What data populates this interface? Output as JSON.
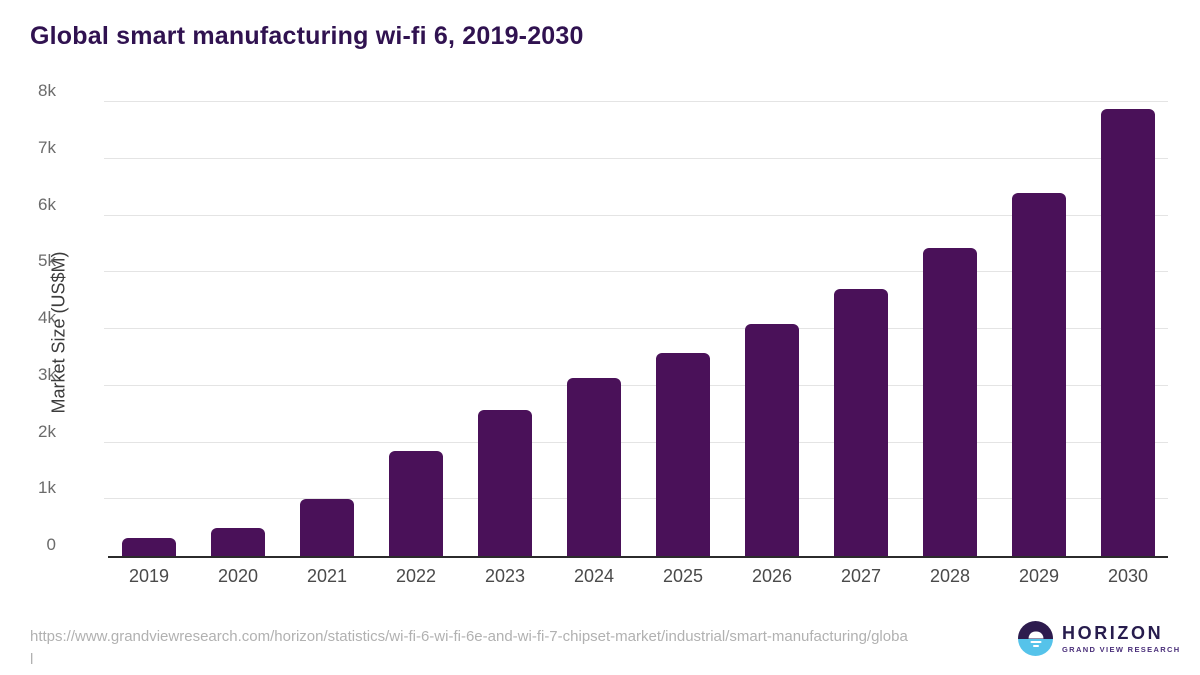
{
  "chart_data": {
    "type": "bar",
    "title": "Global smart manufacturing wi-fi 6, 2019-2030",
    "xlabel": "",
    "ylabel": "Market Size (US$M)",
    "categories": [
      "2019",
      "2020",
      "2021",
      "2022",
      "2023",
      "2024",
      "2025",
      "2026",
      "2027",
      "2028",
      "2029",
      "2030"
    ],
    "values": [
      320,
      500,
      1000,
      1850,
      2570,
      3130,
      3580,
      4090,
      4700,
      5420,
      6400,
      7870
    ],
    "ylim": [
      0,
      8000
    ],
    "yticks": [
      {
        "label": "0",
        "value": 0
      },
      {
        "label": "1k",
        "value": 1000
      },
      {
        "label": "2k",
        "value": 2000
      },
      {
        "label": "3k",
        "value": 3000
      },
      {
        "label": "4k",
        "value": 4000
      },
      {
        "label": "5k",
        "value": 5000
      },
      {
        "label": "6k",
        "value": 6000
      },
      {
        "label": "7k",
        "value": 7000
      },
      {
        "label": "8k",
        "value": 8000
      }
    ],
    "grid": true,
    "legend": false,
    "bar_color": "#4A1159"
  },
  "footer": {
    "source_url": "https://www.grandviewresearch.com/horizon/statistics/wi-fi-6-wi-fi-6e-and-wi-fi-7-chipset-market/industrial/smart-manufacturing/global",
    "logo": {
      "name": "HORIZON",
      "subtitle": "GRAND VIEW RESEARCH",
      "icon_top_color": "#2d1b4e",
      "icon_bottom_color": "#55c3ea"
    }
  },
  "colors": {
    "title": "#301250",
    "bar": "#4A1159",
    "gridline": "#e4e4e4",
    "axis_line": "#2b2b2b",
    "ytick_text": "#6b6b6b",
    "xtick_text": "#4a4a4a",
    "url_text": "#b1b1b1"
  }
}
